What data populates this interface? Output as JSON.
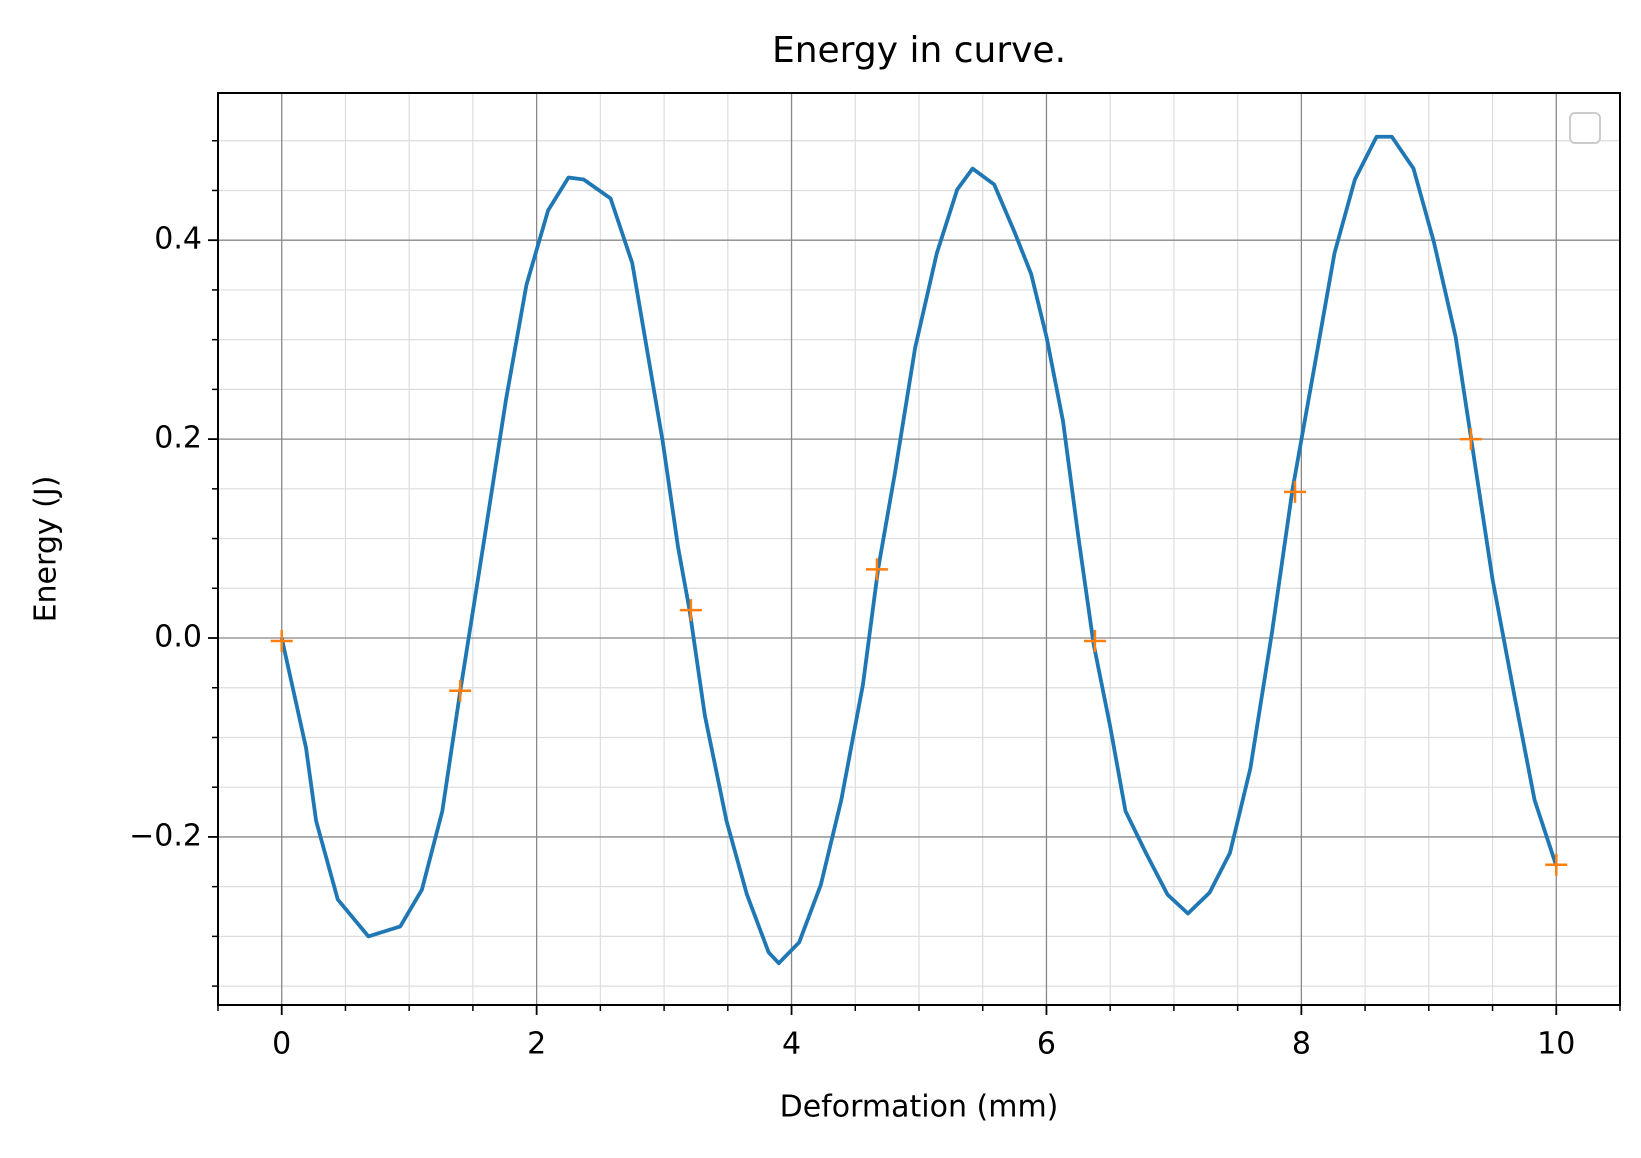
{
  "chart_data": {
    "type": "line",
    "title": "Energy in curve.",
    "x_label": "Deformation (mm)",
    "y_label": "Energy (J)",
    "xlim": [
      -0.5,
      10.5
    ],
    "xticks": [
      0,
      2,
      4,
      6,
      8,
      10
    ],
    "minor_xticks": [
      -0.5,
      0.5,
      1,
      1.5,
      2.5,
      3,
      3.5,
      4.5,
      5,
      5.5,
      6.5,
      7,
      7.5,
      8.5,
      9,
      9.5,
      10.5
    ],
    "ylim": [
      -0.369,
      0.548
    ],
    "yticks": [
      {
        "value": -0.2,
        "label": "−0.2"
      },
      {
        "value": 0,
        "label": "0.0"
      },
      0.2,
      0.4
    ],
    "minor_yticks": [
      -0.35,
      -0.3,
      -0.25,
      -0.15,
      -0.1,
      -0.05,
      0.05,
      0.1,
      0.15,
      0.25,
      0.3,
      0.35,
      0.45,
      0.5
    ],
    "grid": true,
    "legend": "upper right",
    "series": [
      {
        "color": "#1f77b4",
        "style": "line",
        "x": [
          0,
          0.19,
          0.27,
          0.44,
          0.68,
          0.93,
          1.1,
          1.26,
          1.4,
          1.59,
          1.76,
          1.92,
          2.09,
          2.25,
          2.37,
          2.58,
          2.75,
          2.99,
          3.11,
          3.2,
          3.32,
          3.49,
          3.65,
          3.82,
          3.9,
          4.06,
          4.23,
          4.39,
          4.56,
          4.68,
          4.81,
          4.97,
          5.14,
          5.3,
          5.42,
          5.59,
          5.75,
          5.88,
          6.0,
          6.13,
          6.25,
          6.37,
          6.5,
          6.62,
          6.78,
          6.95,
          7.11,
          7.28,
          7.44,
          7.6,
          7.77,
          7.93,
          8.1,
          8.26,
          8.42,
          8.59,
          8.71,
          8.88,
          9.04,
          9.21,
          9.33,
          9.5,
          9.67,
          9.83,
          10
        ],
        "values": [
          0,
          -0.11,
          -0.184,
          -0.263,
          -0.3,
          -0.29,
          -0.253,
          -0.174,
          -0.054,
          0.1,
          0.24,
          0.355,
          0.43,
          0.463,
          0.461,
          0.442,
          0.377,
          0.197,
          0.091,
          0.028,
          -0.078,
          -0.184,
          -0.258,
          -0.316,
          -0.327,
          -0.306,
          -0.248,
          -0.163,
          -0.047,
          0.07,
          0.165,
          0.292,
          0.387,
          0.451,
          0.472,
          0.456,
          0.408,
          0.366,
          0.303,
          0.218,
          0.102,
          -0.006,
          -0.089,
          -0.174,
          -0.216,
          -0.258,
          -0.277,
          -0.256,
          -0.216,
          -0.131,
          0.006,
          0.149,
          0.271,
          0.387,
          0.461,
          0.504,
          0.504,
          0.472,
          0.398,
          0.303,
          0.202,
          0.059,
          -0.057,
          -0.163,
          -0.229
        ]
      },
      {
        "color": "#ff7f0e",
        "style": "plus",
        "x": [
          0,
          1.4,
          3.21,
          4.67,
          6.38,
          7.95,
          9.33,
          10
        ],
        "values": [
          -0.003,
          -0.053,
          0.028,
          0.069,
          -0.003,
          0.147,
          0.2,
          -0.228
        ]
      }
    ]
  }
}
